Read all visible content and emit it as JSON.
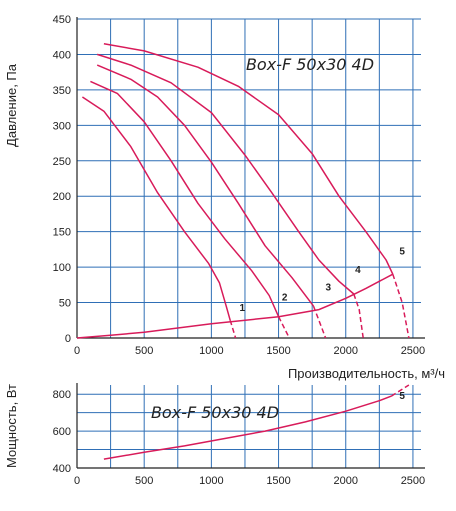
{
  "colors": {
    "curve": "#d81b5a",
    "grid": "#2f6fb6",
    "axis": "#222222",
    "text": "#222222"
  },
  "chart_data": [
    {
      "type": "line",
      "title": "Box-F 50x30 4D",
      "xlabel": "Производительность, м³/ч",
      "ylabel": "Давление, Па",
      "xlim": [
        0,
        2500
      ],
      "ylim": [
        0,
        450
      ],
      "xticks": [
        0,
        500,
        1000,
        1500,
        2000,
        2500
      ],
      "yticks": [
        0,
        50,
        100,
        150,
        200,
        250,
        300,
        350,
        400,
        450
      ],
      "grid": true,
      "series": [
        {
          "name": "1",
          "points": [
            [
              40,
              340
            ],
            [
              200,
              320
            ],
            [
              400,
              270
            ],
            [
              600,
              205
            ],
            [
              800,
              150
            ],
            [
              980,
              105
            ],
            [
              1060,
              78
            ],
            [
              1110,
              45
            ],
            [
              1140,
              25
            ]
          ],
          "dashed": [
            [
              1140,
              25
            ],
            [
              1180,
              0
            ]
          ]
        },
        {
          "name": "2",
          "points": [
            [
              100,
              362
            ],
            [
              300,
              345
            ],
            [
              500,
              305
            ],
            [
              700,
              250
            ],
            [
              900,
              190
            ],
            [
              1100,
              140
            ],
            [
              1300,
              95
            ],
            [
              1430,
              60
            ],
            [
              1500,
              30
            ]
          ],
          "dashed": [
            [
              1500,
              30
            ],
            [
              1580,
              0
            ]
          ]
        },
        {
          "name": "3",
          "points": [
            [
              150,
              385
            ],
            [
              400,
              365
            ],
            [
              600,
              340
            ],
            [
              800,
              300
            ],
            [
              1000,
              248
            ],
            [
              1200,
              190
            ],
            [
              1400,
              130
            ],
            [
              1600,
              85
            ],
            [
              1760,
              45
            ]
          ],
          "dashed": [
            [
              1760,
              45
            ],
            [
              1850,
              0
            ]
          ]
        },
        {
          "name": "4",
          "points": [
            [
              150,
              400
            ],
            [
              400,
              385
            ],
            [
              700,
              360
            ],
            [
              1000,
              318
            ],
            [
              1250,
              258
            ],
            [
              1450,
              205
            ],
            [
              1650,
              150
            ],
            [
              1800,
              110
            ],
            [
              1950,
              80
            ],
            [
              2060,
              62
            ]
          ],
          "dashed": [
            [
              2060,
              62
            ],
            [
              2100,
              40
            ],
            [
              2130,
              0
            ]
          ]
        },
        {
          "name": "5",
          "points": [
            [
              200,
              415
            ],
            [
              500,
              405
            ],
            [
              900,
              382
            ],
            [
              1200,
              355
            ],
            [
              1500,
              315
            ],
            [
              1750,
              260
            ],
            [
              1950,
              200
            ],
            [
              2150,
              150
            ],
            [
              2300,
              110
            ],
            [
              2350,
              90
            ]
          ],
          "dashed": [
            [
              2350,
              90
            ],
            [
              2420,
              50
            ],
            [
              2470,
              0
            ]
          ]
        }
      ],
      "system_curve": [
        [
          0,
          0
        ],
        [
          250,
          4
        ],
        [
          500,
          8
        ],
        [
          1000,
          20
        ],
        [
          1500,
          30
        ],
        [
          1800,
          40
        ],
        [
          2000,
          56
        ],
        [
          2150,
          70
        ],
        [
          2350,
          90
        ]
      ],
      "labels": [
        {
          "text": "1",
          "x": 1230,
          "y": 38
        },
        {
          "text": "2",
          "x": 1545,
          "y": 53
        },
        {
          "text": "3",
          "x": 1870,
          "y": 67
        },
        {
          "text": "4",
          "x": 2090,
          "y": 92
        },
        {
          "text": "5",
          "x": 2420,
          "y": 118
        }
      ]
    },
    {
      "type": "line",
      "title": "Box-F 50x30 4D",
      "xlabel": "",
      "ylabel": "Мощность, Вт",
      "xlim": [
        0,
        2500
      ],
      "ylim": [
        400,
        850
      ],
      "xticks": [
        0,
        500,
        1000,
        1500,
        2000,
        2500
      ],
      "yticks": [
        400,
        600,
        800
      ],
      "grid": true,
      "series": [
        {
          "name": "5",
          "points": [
            [
              200,
              448
            ],
            [
              500,
              485
            ],
            [
              800,
              520
            ],
            [
              1100,
              560
            ],
            [
              1400,
              600
            ],
            [
              1700,
              650
            ],
            [
              2000,
              708
            ],
            [
              2250,
              765
            ],
            [
              2340,
              790
            ]
          ],
          "dashed": [
            [
              2340,
              790
            ],
            [
              2470,
              850
            ]
          ]
        }
      ],
      "labels": [
        {
          "text": "5",
          "x": 2420,
          "y": 775
        }
      ]
    }
  ]
}
